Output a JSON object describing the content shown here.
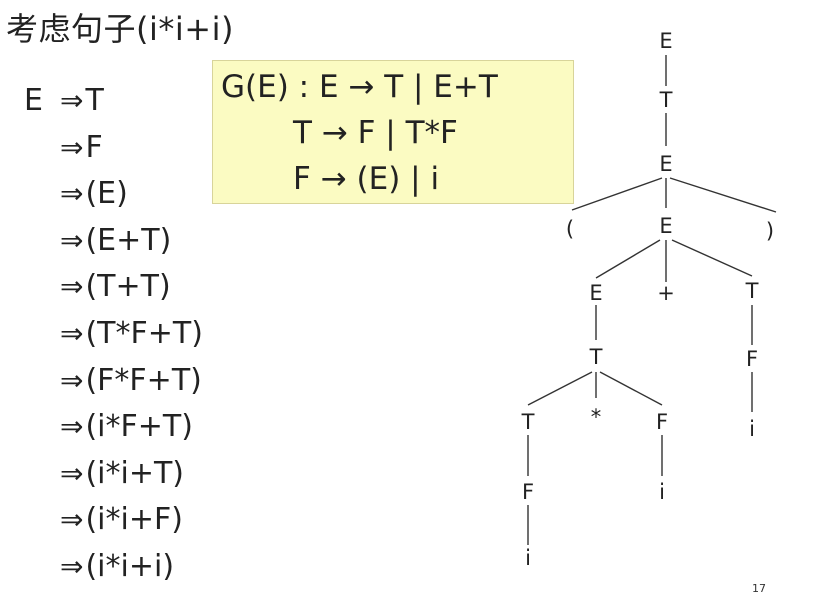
{
  "title": "考虑句子(i*i+i)",
  "derivation": {
    "start": "E",
    "arrow": "⇒",
    "steps": [
      "T",
      "F",
      "(E)",
      "(E+T)",
      "(T+T)",
      "(T*F+T)",
      "(F*F+T)",
      "(i*F+T)",
      "(i*i+T)",
      "(i*i+F)",
      "(i*i+i)"
    ]
  },
  "grammar": {
    "line1": "G(E) : E → T | E+T",
    "line2": "T → F | T*F",
    "line3": "F → (E) | i"
  },
  "tree": {
    "nodes": [
      "E",
      "T",
      "E",
      "(",
      "E",
      ")",
      "E",
      "+",
      "T",
      "T",
      "F",
      "T",
      "*",
      "F",
      "i",
      "F",
      "i",
      "i"
    ]
  },
  "page_number": "17"
}
